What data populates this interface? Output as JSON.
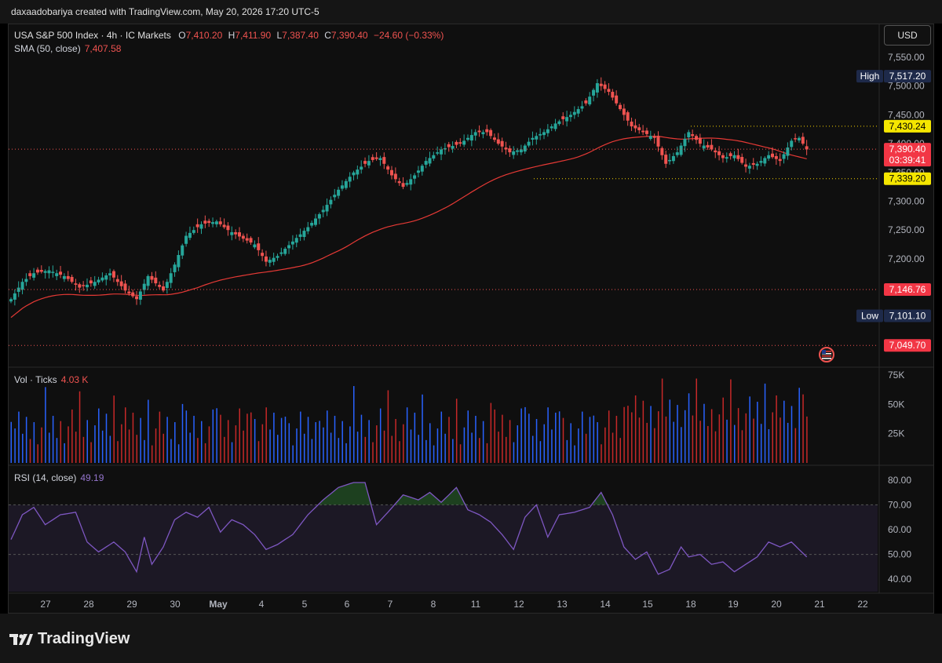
{
  "header": {
    "attribution": "daxaadobariya created with TradingView.com, May 20, 2026 17:20 UTC-5"
  },
  "legend": {
    "symbol": "USA S&P 500 Index · 4h · IC Markets",
    "o_label": "O",
    "o_value": "7,410.20",
    "h_label": "H",
    "h_value": "7,411.90",
    "l_label": "L",
    "l_value": "7,387.40",
    "c_label": "C",
    "c_value": "7,390.40",
    "change": "−24.60 (−0.33%)",
    "sma_label": "SMA (50, close)",
    "sma_value": "7,407.58",
    "vol_label": "Vol · Ticks",
    "vol_value": "4.03 K",
    "rsi_label": "RSI (14, close)",
    "rsi_value": "49.19"
  },
  "currency_button": "USD",
  "brand": "TradingView",
  "colors": {
    "up": "#26a69a",
    "down": "#ef5350",
    "sma": "#e53935",
    "rsi": "#7e57c2",
    "vol_up": "#2962ff",
    "vol_down": "#c62828"
  },
  "chart_data": [
    {
      "type": "candlestick",
      "timeframe": "4h",
      "price_axis": {
        "ticks": [
          "7,550.00",
          "7,500.00",
          "7,450.00",
          "7,400.00",
          "7,350.00",
          "7,300.00",
          "7,250.00",
          "7,200.00",
          "7,150.00",
          "7,100.00"
        ],
        "range": [
          7020,
          7565
        ]
      },
      "time_axis": {
        "ticks": [
          "27",
          "28",
          "29",
          "30",
          "May",
          "4",
          "5",
          "6",
          "7",
          "8",
          "11",
          "12",
          "13",
          "14",
          "15",
          "18",
          "19",
          "20",
          "21",
          "22"
        ]
      },
      "markers": [
        {
          "name": "High",
          "label": "High",
          "value": "7,517.20"
        },
        {
          "name": "Low",
          "label": "Low",
          "value": "7,101.10"
        },
        {
          "name": "level-1",
          "value": "7,430.24"
        },
        {
          "name": "level-2",
          "value": "7,339.20"
        },
        {
          "name": "last-price",
          "value": "7,390.40",
          "countdown": "03:39:41"
        },
        {
          "name": "level-3",
          "value": "7,146.76"
        },
        {
          "name": "level-4",
          "value": "7,049.70"
        }
      ],
      "close_anchors": [
        [
          0,
          7130
        ],
        [
          3,
          7160
        ],
        [
          6,
          7175
        ],
        [
          10,
          7180
        ],
        [
          14,
          7170
        ],
        [
          18,
          7150
        ],
        [
          22,
          7160
        ],
        [
          26,
          7175
        ],
        [
          30,
          7145
        ],
        [
          33,
          7130
        ],
        [
          36,
          7170
        ],
        [
          40,
          7145
        ],
        [
          43,
          7190
        ],
        [
          46,
          7240
        ],
        [
          50,
          7260
        ],
        [
          54,
          7265
        ],
        [
          57,
          7250
        ],
        [
          61,
          7235
        ],
        [
          64,
          7225
        ],
        [
          67,
          7195
        ],
        [
          70,
          7205
        ],
        [
          74,
          7230
        ],
        [
          78,
          7255
        ],
        [
          82,
          7285
        ],
        [
          86,
          7320
        ],
        [
          90,
          7350
        ],
        [
          94,
          7370
        ],
        [
          97,
          7375
        ],
        [
          100,
          7345
        ],
        [
          103,
          7325
        ],
        [
          106,
          7345
        ],
        [
          109,
          7370
        ],
        [
          113,
          7390
        ],
        [
          118,
          7400
        ],
        [
          122,
          7420
        ],
        [
          125,
          7420
        ],
        [
          128,
          7400
        ],
        [
          131,
          7385
        ],
        [
          134,
          7390
        ],
        [
          137,
          7410
        ],
        [
          140,
          7420
        ],
        [
          143,
          7435
        ],
        [
          147,
          7450
        ],
        [
          151,
          7470
        ],
        [
          154,
          7505
        ],
        [
          157,
          7490
        ],
        [
          160,
          7460
        ],
        [
          163,
          7430
        ],
        [
          166,
          7420
        ],
        [
          169,
          7410
        ],
        [
          172,
          7365
        ],
        [
          175,
          7385
        ],
        [
          178,
          7420
        ],
        [
          181,
          7400
        ],
        [
          184,
          7390
        ],
        [
          187,
          7375
        ],
        [
          190,
          7380
        ],
        [
          193,
          7360
        ],
        [
          196,
          7365
        ],
        [
          199,
          7380
        ],
        [
          202,
          7370
        ],
        [
          205,
          7405
        ],
        [
          207,
          7410
        ],
        [
          209,
          7390
        ]
      ],
      "sma_period": 50,
      "volume": {
        "axis_ticks": [
          "75K",
          "50K",
          "25K"
        ],
        "range": [
          0,
          75000
        ]
      },
      "rsi": {
        "period": 14,
        "axis_ticks": [
          "80.00",
          "70.00",
          "60.00",
          "50.00",
          "40.00"
        ],
        "overbought": 70,
        "oversold": 30,
        "mid": 50,
        "range": [
          35,
          85
        ],
        "anchors": [
          [
            0,
            56
          ],
          [
            3,
            66
          ],
          [
            6,
            69
          ],
          [
            9,
            62
          ],
          [
            13,
            66
          ],
          [
            17,
            67
          ],
          [
            20,
            55
          ],
          [
            23,
            51
          ],
          [
            27,
            55
          ],
          [
            30,
            51
          ],
          [
            33,
            43
          ],
          [
            35,
            57
          ],
          [
            37,
            46
          ],
          [
            40,
            53
          ],
          [
            43,
            64
          ],
          [
            46,
            67
          ],
          [
            49,
            65
          ],
          [
            52,
            69
          ],
          [
            55,
            59
          ],
          [
            58,
            64
          ],
          [
            61,
            62
          ],
          [
            64,
            58
          ],
          [
            67,
            52
          ],
          [
            70,
            54
          ],
          [
            74,
            58
          ],
          [
            78,
            66
          ],
          [
            82,
            72
          ],
          [
            86,
            77
          ],
          [
            90,
            79
          ],
          [
            93,
            79
          ],
          [
            96,
            62
          ],
          [
            99,
            67
          ],
          [
            103,
            74
          ],
          [
            107,
            72
          ],
          [
            110,
            75
          ],
          [
            113,
            71
          ],
          [
            117,
            77
          ],
          [
            120,
            68
          ],
          [
            123,
            66
          ],
          [
            126,
            63
          ],
          [
            129,
            58
          ],
          [
            132,
            52
          ],
          [
            135,
            65
          ],
          [
            138,
            70
          ],
          [
            141,
            57
          ],
          [
            144,
            66
          ],
          [
            148,
            67
          ],
          [
            152,
            69
          ],
          [
            155,
            75
          ],
          [
            158,
            66
          ],
          [
            161,
            53
          ],
          [
            164,
            48
          ],
          [
            167,
            51
          ],
          [
            170,
            42
          ],
          [
            173,
            44
          ],
          [
            176,
            53
          ],
          [
            178,
            49
          ],
          [
            181,
            50
          ],
          [
            184,
            46
          ],
          [
            187,
            47
          ],
          [
            190,
            43
          ],
          [
            193,
            46
          ],
          [
            196,
            49
          ],
          [
            199,
            55
          ],
          [
            202,
            53
          ],
          [
            205,
            55
          ],
          [
            207,
            52
          ],
          [
            209,
            49
          ]
        ]
      }
    }
  ]
}
